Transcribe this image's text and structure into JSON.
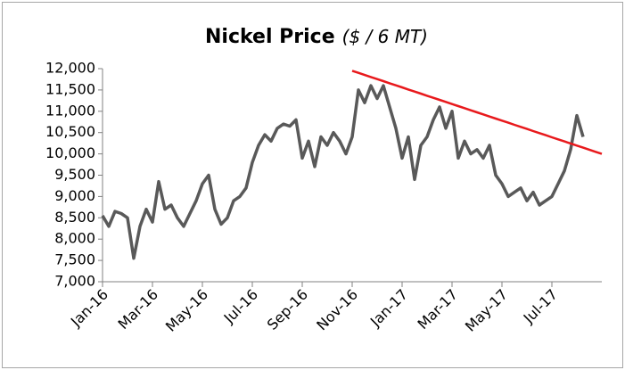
{
  "chart_data": {
    "type": "line",
    "title": "Nickel Price",
    "title_unit": "($ / 6 MT)",
    "categories": [
      "Jan-16",
      null,
      null,
      null,
      null,
      null,
      null,
      null,
      "Mar-16",
      null,
      null,
      null,
      null,
      null,
      null,
      null,
      "May-16",
      null,
      null,
      null,
      null,
      null,
      null,
      null,
      "Jul-16",
      null,
      null,
      null,
      null,
      null,
      null,
      null,
      "Sep-16",
      null,
      null,
      null,
      null,
      null,
      null,
      null,
      "Nov-16",
      null,
      null,
      null,
      null,
      null,
      null,
      null,
      "Jan-17",
      null,
      null,
      null,
      null,
      null,
      null,
      null,
      "Mar-17",
      null,
      null,
      null,
      null,
      null,
      null,
      null,
      "May-17",
      null,
      null,
      null,
      null,
      null,
      null,
      null,
      "Jul-17",
      null,
      null,
      null,
      null,
      null,
      null,
      null,
      null
    ],
    "series": [
      {
        "name": "Nickel Price",
        "color": "#595959",
        "values": [
          8550,
          8300,
          8650,
          8600,
          8500,
          7550,
          8300,
          8700,
          8400,
          9350,
          8700,
          8800,
          8500,
          8300,
          8600,
          8900,
          9300,
          9500,
          8700,
          8350,
          8500,
          8900,
          9000,
          9200,
          9800,
          10200,
          10450,
          10300,
          10600,
          10700,
          10650,
          10800,
          9900,
          10300,
          9700,
          10400,
          10200,
          10500,
          10300,
          10000,
          10400,
          11500,
          11200,
          11600,
          11300,
          11600,
          11100,
          10600,
          9900,
          10400,
          9400,
          10200,
          10400,
          10800,
          11100,
          10600,
          11000,
          9900,
          10300,
          10000,
          10100,
          9900,
          10200,
          9500,
          9300,
          9000,
          9100,
          9200,
          8900,
          9100,
          8800,
          8900,
          9000,
          9300,
          9600,
          10100,
          10900,
          10400,
          null,
          null,
          null
        ]
      },
      {
        "color": "#e8191c",
        "values": [
          null,
          null,
          null,
          null,
          null,
          null,
          null,
          null,
          null,
          null,
          null,
          null,
          null,
          null,
          null,
          null,
          null,
          null,
          null,
          null,
          null,
          null,
          null,
          null,
          null,
          null,
          null,
          null,
          null,
          null,
          null,
          null,
          null,
          null,
          null,
          null,
          null,
          null,
          null,
          null,
          11950,
          11901.25,
          11852.5,
          11803.75,
          11755,
          11706.25,
          11657.5,
          11608.75,
          11560,
          11511.25,
          11462.5,
          11413.75,
          11365,
          11316.25,
          11267.5,
          11218.75,
          11170,
          11121.25,
          11072.5,
          11023.75,
          10975,
          10926.25,
          10877.5,
          10828.75,
          10780,
          10731.25,
          10682.5,
          10633.75,
          10585,
          10536.25,
          10487.5,
          10438.75,
          10390,
          10341.25,
          10292.5,
          10243.75,
          10195,
          10146.25,
          10097.5,
          10048.75,
          10000
        ]
      }
    ],
    "ylim": [
      7000,
      12000
    ],
    "yticks": [
      {
        "value": 7000,
        "label": "7,000"
      },
      {
        "value": 7500,
        "label": "7,500"
      },
      {
        "value": 8000,
        "label": "8,000"
      },
      {
        "value": 8500,
        "label": "8,500"
      },
      {
        "value": 9000,
        "label": "9,000"
      },
      {
        "value": 9500,
        "label": "9,500"
      },
      {
        "value": 10000,
        "label": "10,000"
      },
      {
        "value": 10500,
        "label": "10,500"
      },
      {
        "value": 11000,
        "label": "11,000"
      },
      {
        "value": 11500,
        "label": "11,500"
      },
      {
        "value": 12000,
        "label": "12,000"
      }
    ],
    "grid": false
  }
}
